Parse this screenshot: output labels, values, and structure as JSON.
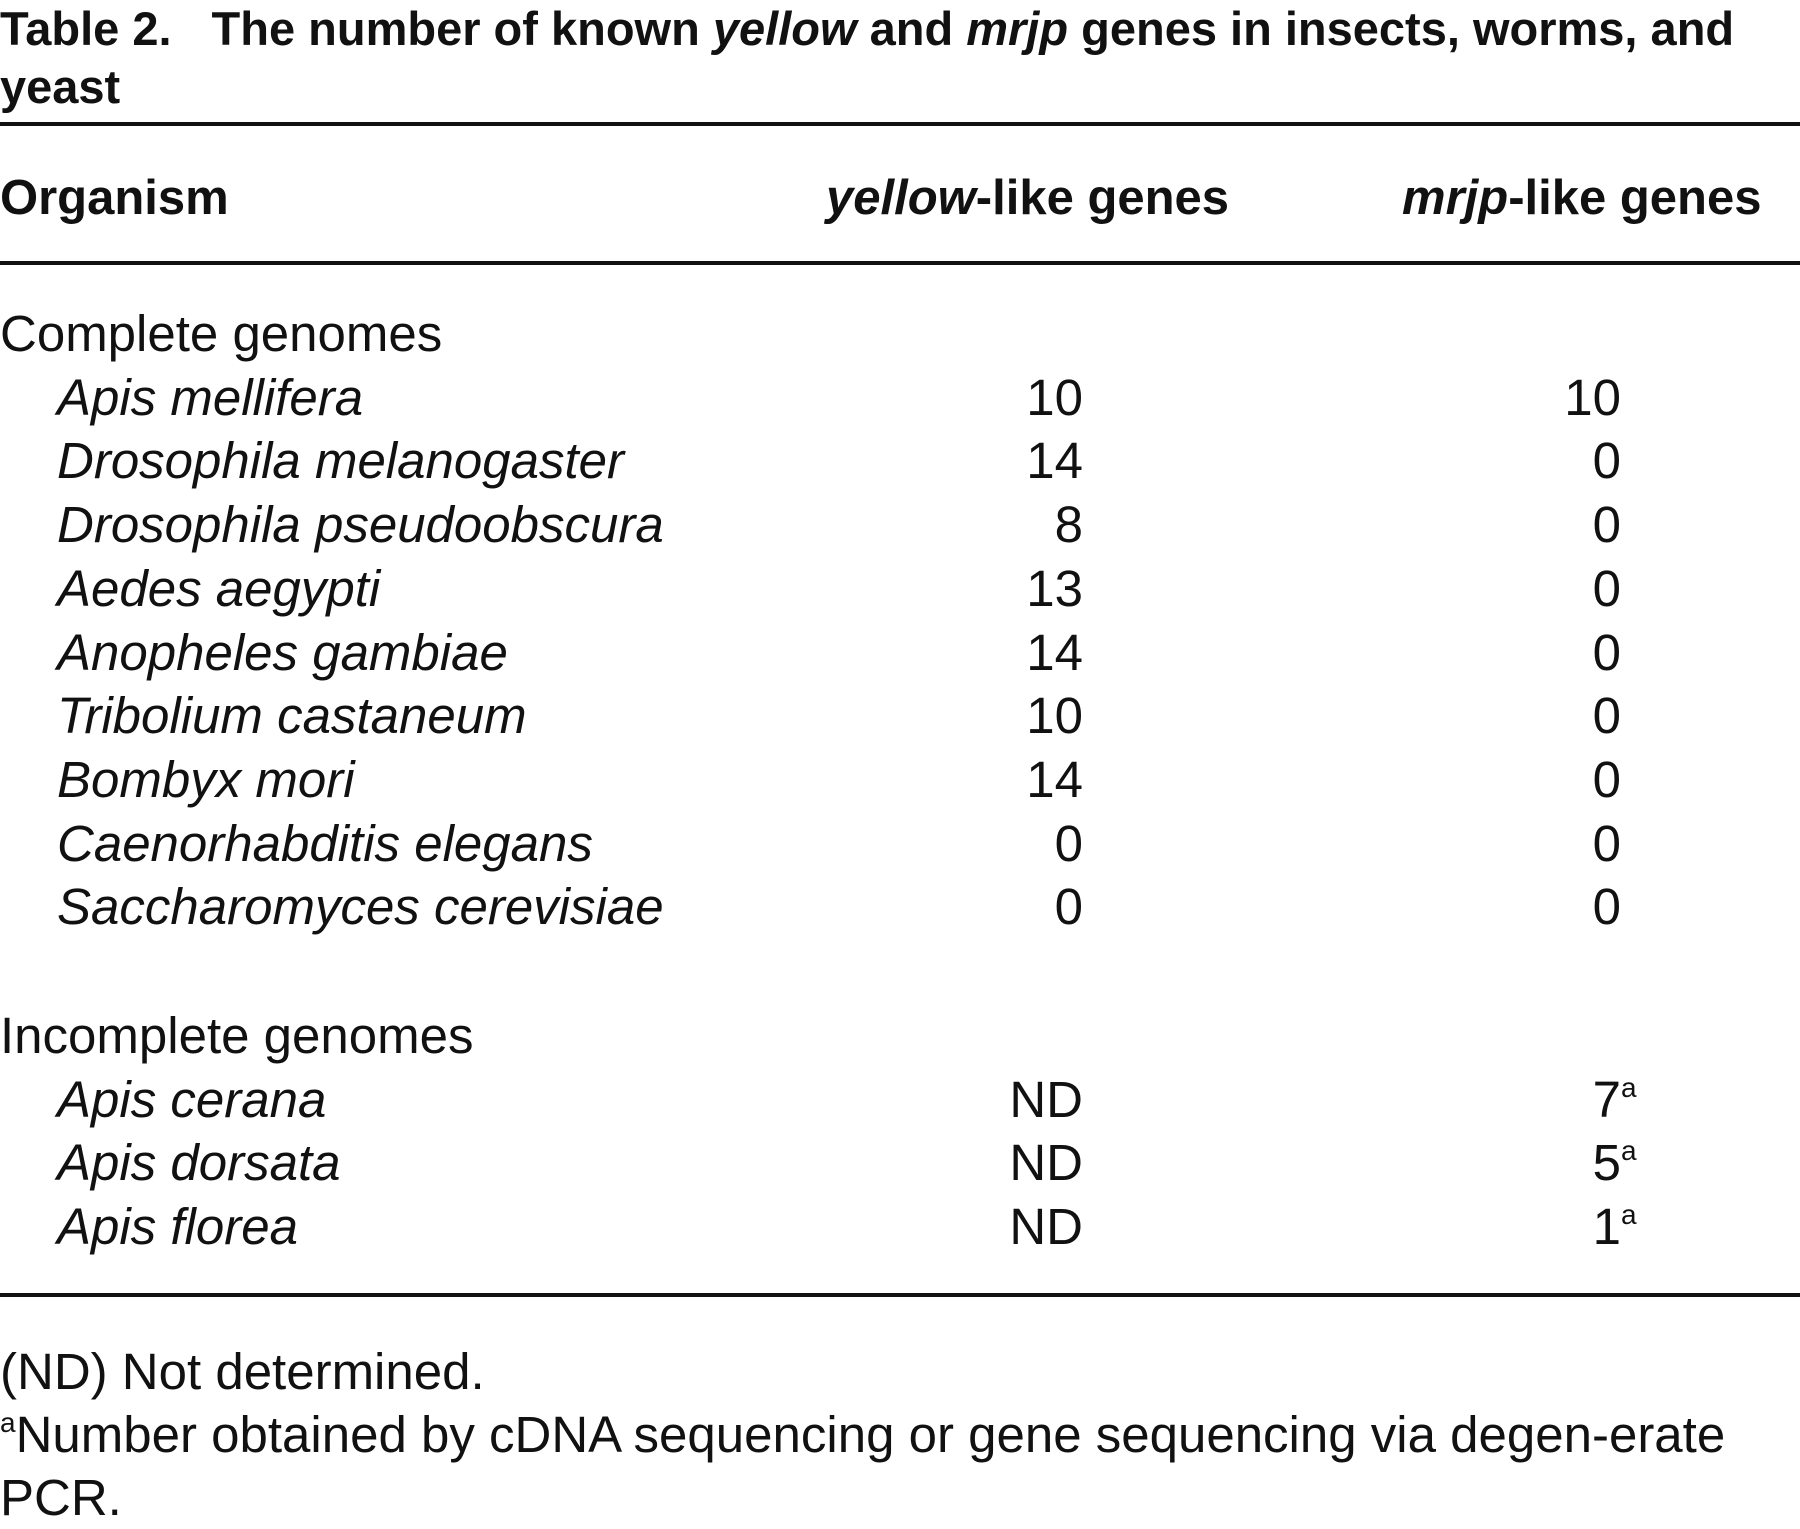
{
  "title": {
    "label": "Table 2.",
    "parts": [
      "The number of known ",
      "yellow",
      " and ",
      "mrjp",
      " genes in insects, worms, and yeast"
    ]
  },
  "header": {
    "organism": "Organism",
    "yellow": [
      "yellow",
      "-like genes"
    ],
    "mrjp": [
      "mrjp",
      "-like genes"
    ]
  },
  "sections": [
    {
      "title": "Complete genomes",
      "rows": [
        {
          "organism": "Apis mellifera",
          "yellow": 10,
          "mrjp": 10
        },
        {
          "organism": "Drosophila melanogaster",
          "yellow": 14,
          "mrjp": 0
        },
        {
          "organism": "Drosophila pseudoobscura",
          "yellow": 8,
          "mrjp": 0
        },
        {
          "organism": "Aedes aegypti",
          "yellow": 13,
          "mrjp": 0
        },
        {
          "organism": "Anopheles gambiae",
          "yellow": 14,
          "mrjp": 0
        },
        {
          "organism": "Tribolium castaneum",
          "yellow": 10,
          "mrjp": 0
        },
        {
          "organism": "Bombyx mori",
          "yellow": 14,
          "mrjp": 0
        },
        {
          "organism": "Caenorhabditis elegans",
          "yellow": 0,
          "mrjp": 0
        },
        {
          "organism": "Saccharomyces cerevisiae",
          "yellow": 0,
          "mrjp": 0
        }
      ]
    },
    {
      "title": "Incomplete genomes",
      "rows": [
        {
          "organism": "Apis cerana",
          "yellow": "ND",
          "mrjp": 7,
          "note": "a"
        },
        {
          "organism": "Apis dorsata",
          "yellow": "ND",
          "mrjp": 5,
          "note": "a"
        },
        {
          "organism": "Apis florea",
          "yellow": "ND",
          "mrjp": 1,
          "note": "a"
        }
      ]
    }
  ],
  "footnotes": {
    "nd": "(ND) Not determined.",
    "a": {
      "mark": "a",
      "text": "Number obtained by cDNA sequencing or gene sequencing via degen-erate PCR."
    }
  }
}
